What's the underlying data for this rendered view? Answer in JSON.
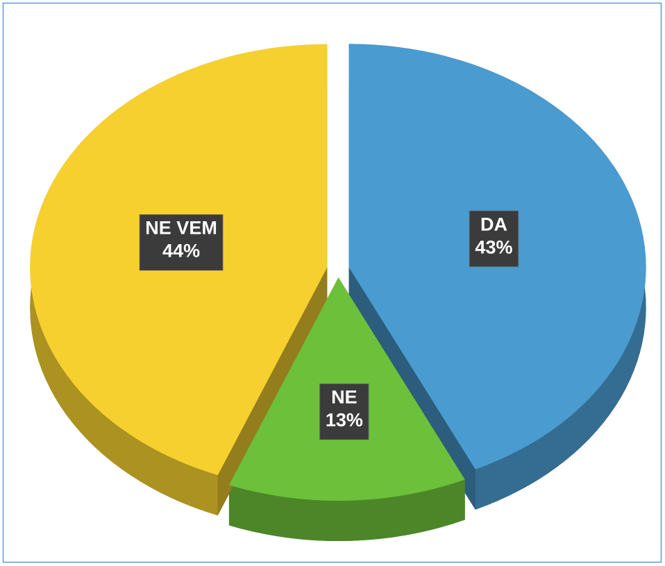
{
  "chart_data": {
    "type": "pie",
    "categories": [
      "DA",
      "NE",
      "NE VEM"
    ],
    "values": [
      43,
      13,
      44
    ],
    "value_labels": [
      "43%",
      "13%",
      "44%"
    ],
    "colors": [
      "#4a9bcf",
      "#6cc03a",
      "#f6d02f"
    ]
  }
}
